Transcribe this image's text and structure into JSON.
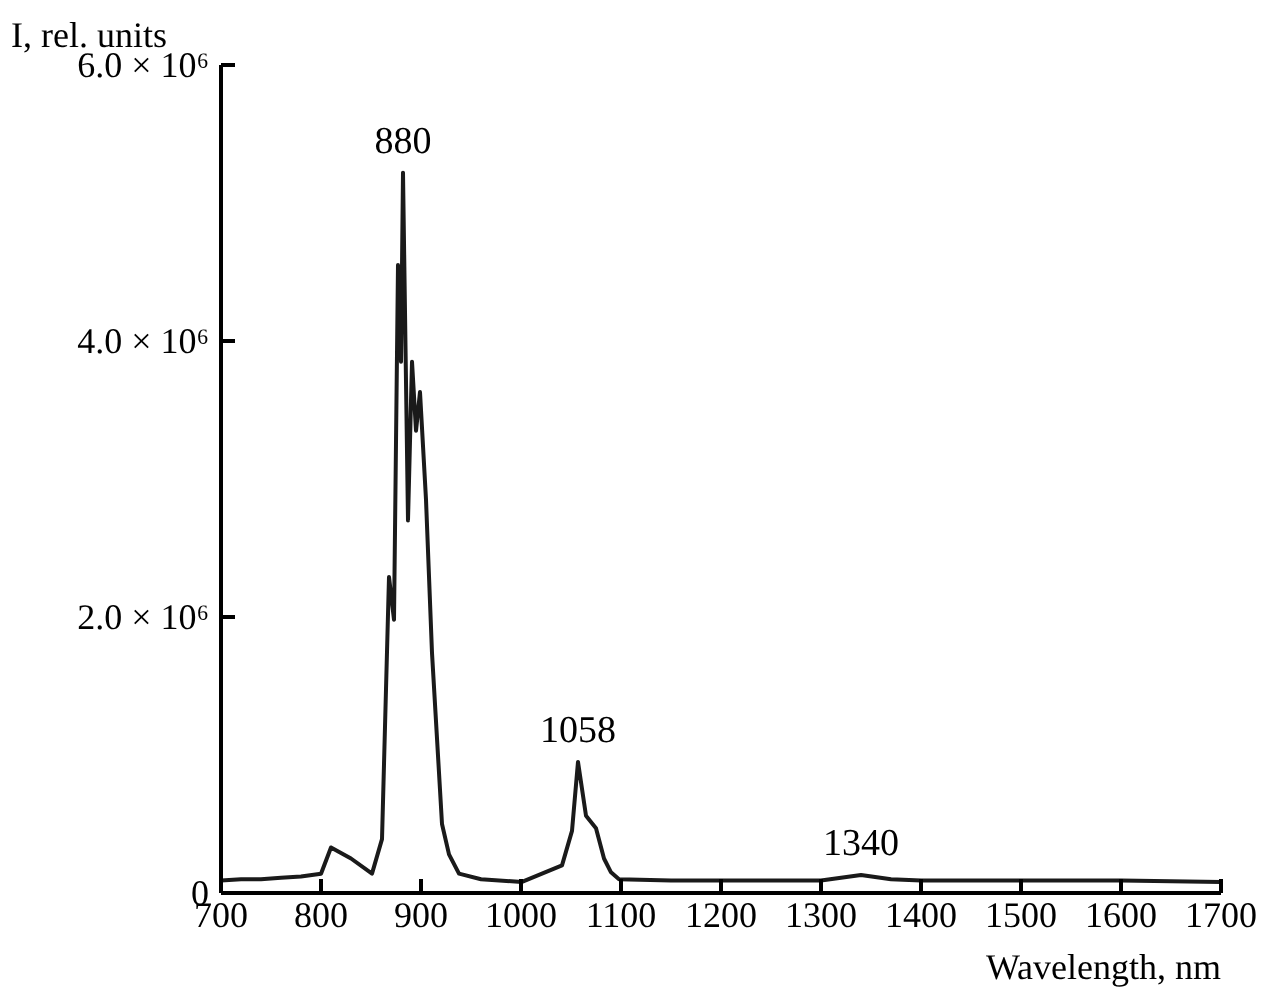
{
  "chart_data": {
    "type": "line",
    "xlabel": "Wavelength, nm",
    "ylabel": "I, rel. units",
    "x": [
      700,
      720,
      740,
      760,
      780,
      800,
      810,
      830,
      851,
      861,
      868,
      873,
      877,
      880,
      882,
      887,
      891,
      895,
      899,
      905,
      911,
      921,
      928,
      938,
      960,
      1001,
      1041,
      1051,
      1057,
      1065,
      1075,
      1083,
      1090,
      1098,
      1150,
      1250,
      1300,
      1340,
      1370,
      1400,
      1500,
      1600,
      1700
    ],
    "series": [
      {
        "color": "#1a1a1a",
        "values": [
          90000.0,
          100000.0,
          100000.0,
          110000.0,
          120000.0,
          140000.0,
          330000.0,
          250000.0,
          140000.0,
          390000.0,
          2290000.0,
          1980000.0,
          4550000.0,
          3850000.0,
          5220000.0,
          2700000.0,
          3850000.0,
          3350000.0,
          3630000.0,
          2850000.0,
          1740000.0,
          500000.0,
          280000.0,
          140000.0,
          100000.0,
          80000.0,
          200000.0,
          450000.0,
          950000.0,
          560000.0,
          470000.0,
          250000.0,
          150000.0,
          100000.0,
          90000.0,
          90000.0,
          90000.0,
          130000.0,
          100000.0,
          90000.0,
          90000.0,
          90000.0,
          80000.0
        ]
      }
    ],
    "xlim": [
      700,
      1700
    ],
    "xticks": [
      700,
      800,
      900,
      1000,
      1100,
      1200,
      1300,
      1400,
      1500,
      1600,
      1700
    ],
    "ylim": [
      0,
      6000000
    ],
    "yticks": [
      0,
      {
        "value": 2000000,
        "label": "2.0 × 10⁶"
      },
      {
        "value": 4000000,
        "label": "4.0 × 10⁶"
      },
      {
        "value": 6000000,
        "label": "6.0 × 10⁶"
      }
    ],
    "annotations": [
      {
        "text": "880",
        "x": 882,
        "y": 5220000
      },
      {
        "text": "1058",
        "x": 1057,
        "y": 950000
      },
      {
        "text": "1340",
        "x": 1340,
        "y": 130000
      }
    ],
    "grid": false
  }
}
